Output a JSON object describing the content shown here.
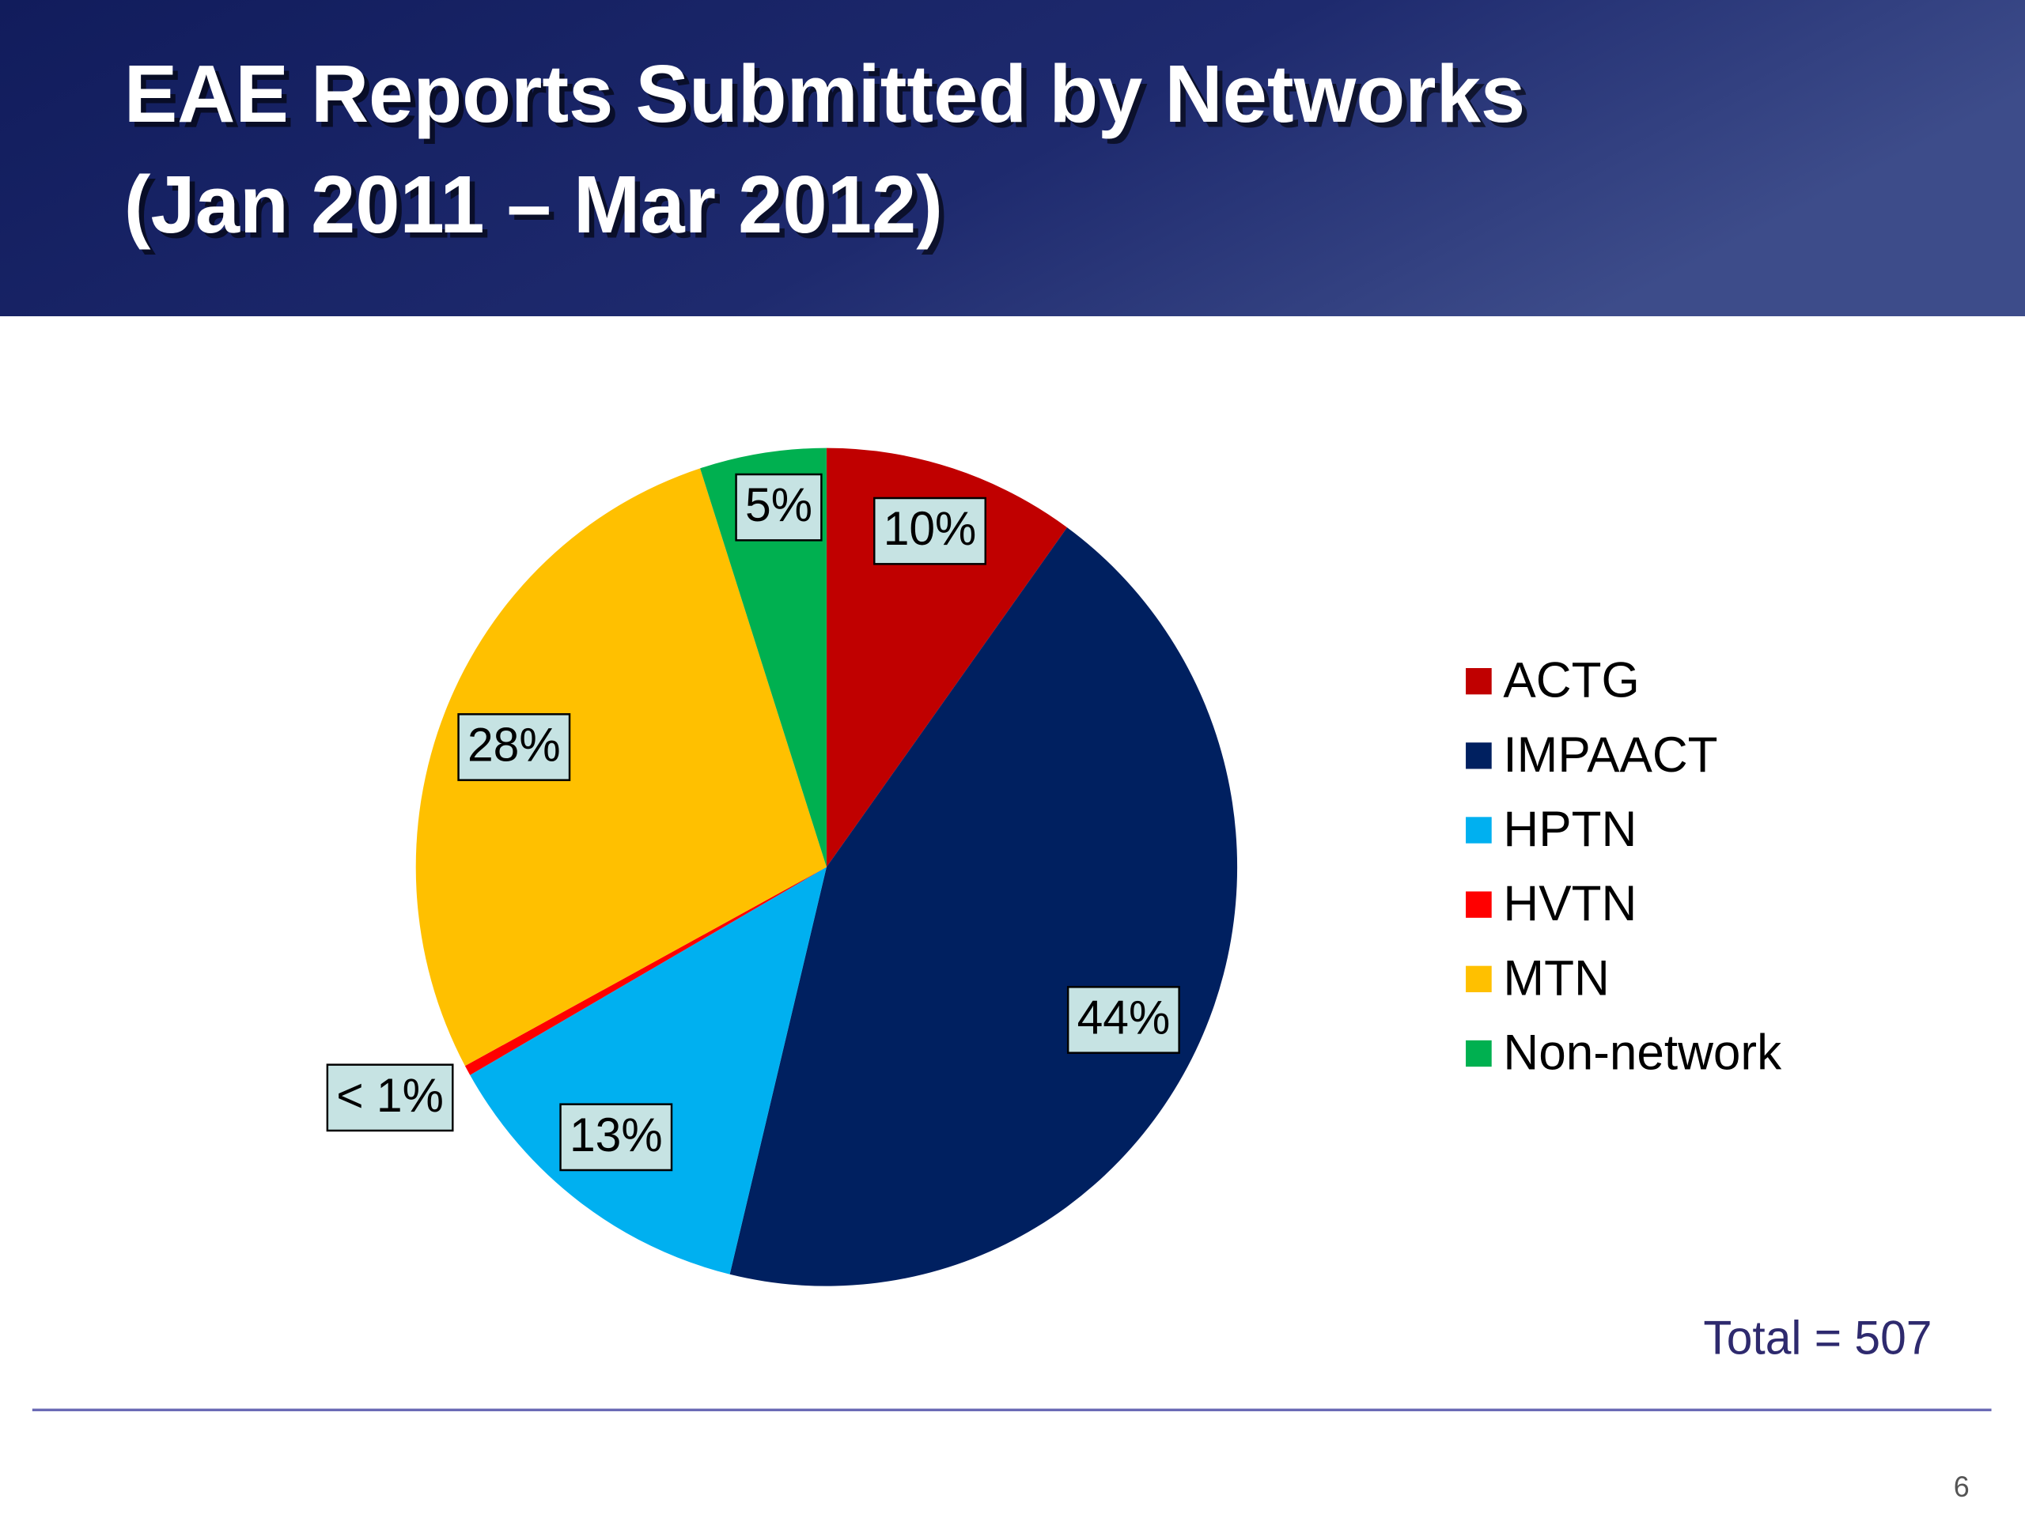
{
  "chart_data": {
    "type": "pie",
    "title": "EAE Reports Submitted by Networks",
    "subtitle": "(Jan 2011 – Mar 2012)",
    "categories": [
      "ACTG",
      "IMPAACT",
      "HPTN",
      "HVTN",
      "MTN",
      "Non-network"
    ],
    "values": [
      10,
      44,
      13,
      0.4,
      28,
      5
    ],
    "value_labels": [
      "10%",
      "44%",
      "13%",
      "< 1%",
      "28%",
      "5%"
    ],
    "colors": [
      "#c00000",
      "#002060",
      "#00b0f0",
      "#ff0000",
      "#ffc000",
      "#00b050"
    ],
    "legend": "right",
    "annotation": "Total = 507"
  },
  "page_number": "6"
}
